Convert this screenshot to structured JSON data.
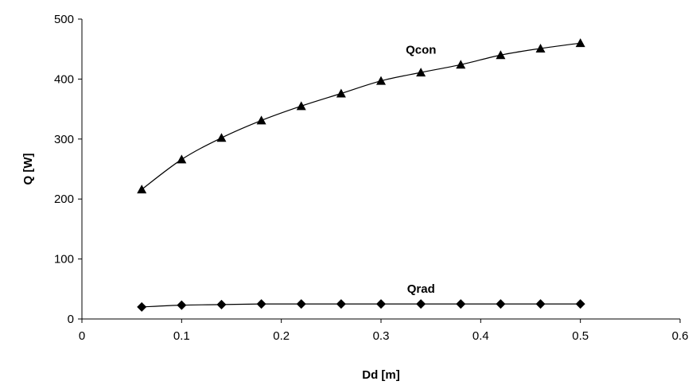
{
  "chart_data": {
    "type": "line",
    "title": "",
    "xlabel": "Dd [m]",
    "ylabel": "Q [W]",
    "xlim": [
      0,
      0.6
    ],
    "ylim": [
      0,
      500
    ],
    "x_ticks": [
      "0",
      "0.1",
      "0.2",
      "0.3",
      "0.4",
      "0.5",
      "0.6"
    ],
    "y_ticks": [
      "0",
      "100",
      "200",
      "300",
      "400",
      "500"
    ],
    "grid": false,
    "legend": "none",
    "x": [
      0.06,
      0.1,
      0.14,
      0.18,
      0.22,
      0.26,
      0.3,
      0.34,
      0.38,
      0.42,
      0.46,
      0.5
    ],
    "series": [
      {
        "name": "Qcon",
        "marker": "triangle",
        "color": "#000000",
        "values": [
          216,
          266,
          302,
          331,
          355,
          376,
          397,
          411,
          424,
          440,
          451,
          460
        ]
      },
      {
        "name": "Qrad",
        "marker": "diamond",
        "color": "#000000",
        "values": [
          20,
          23,
          24,
          25,
          25,
          25,
          25,
          25,
          25,
          25,
          25,
          25
        ]
      }
    ]
  }
}
